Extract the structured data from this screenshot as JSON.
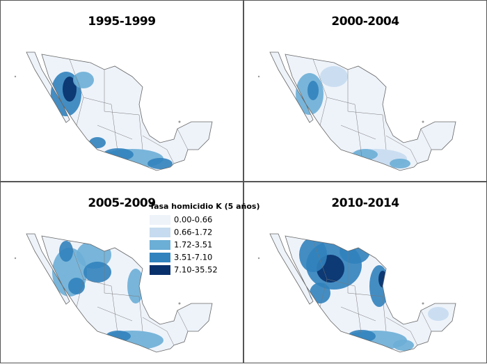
{
  "panels": [
    {
      "title": "1995-1999"
    },
    {
      "title": "2000-2004"
    },
    {
      "title": "2005-2009"
    },
    {
      "title": "2010-2014"
    }
  ],
  "legend": {
    "title": "Tasa homicidio K (5 años)",
    "items": [
      {
        "label": "0.00-0.66",
        "color": "#eef3fa"
      },
      {
        "label": "0.66-1.72",
        "color": "#c6dbef"
      },
      {
        "label": "1.72-3.51",
        "color": "#6baed6"
      },
      {
        "label": "3.51-7.10",
        "color": "#3182bd"
      },
      {
        "label": "7.10-35.52",
        "color": "#08306b"
      }
    ]
  }
}
